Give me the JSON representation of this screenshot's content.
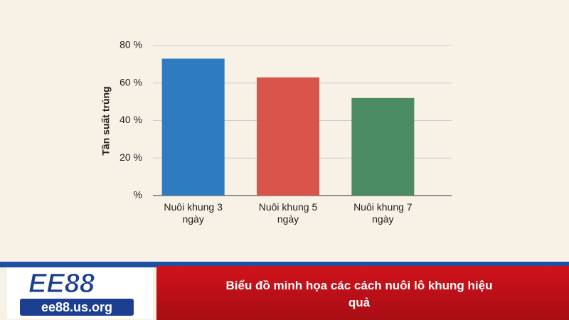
{
  "chart_data": {
    "type": "bar",
    "ylabel": "Tần suất trúng",
    "categories": [
      "Nuôi khung 3 ngày",
      "Nuôi khung 5 ngày",
      "Nuôi khung 7 ngày"
    ],
    "values": [
      73,
      63,
      52
    ],
    "colors": [
      "#2f7bbf",
      "#d9544a",
      "#4a8b63"
    ],
    "ylim": [
      0,
      80
    ],
    "yticks": [
      {
        "value": 0,
        "label": "%"
      },
      {
        "value": 20,
        "label": "20 %"
      },
      {
        "value": 40,
        "label": "40 %"
      },
      {
        "value": 60,
        "label": "60 %"
      },
      {
        "value": 80,
        "label": "80 %"
      }
    ],
    "grid": true
  },
  "banner": {
    "logo": "EE88",
    "url": "ee88.us.org",
    "caption": "Biểu đồ minh họa các cách nuôi lô khung hiệu quả"
  }
}
